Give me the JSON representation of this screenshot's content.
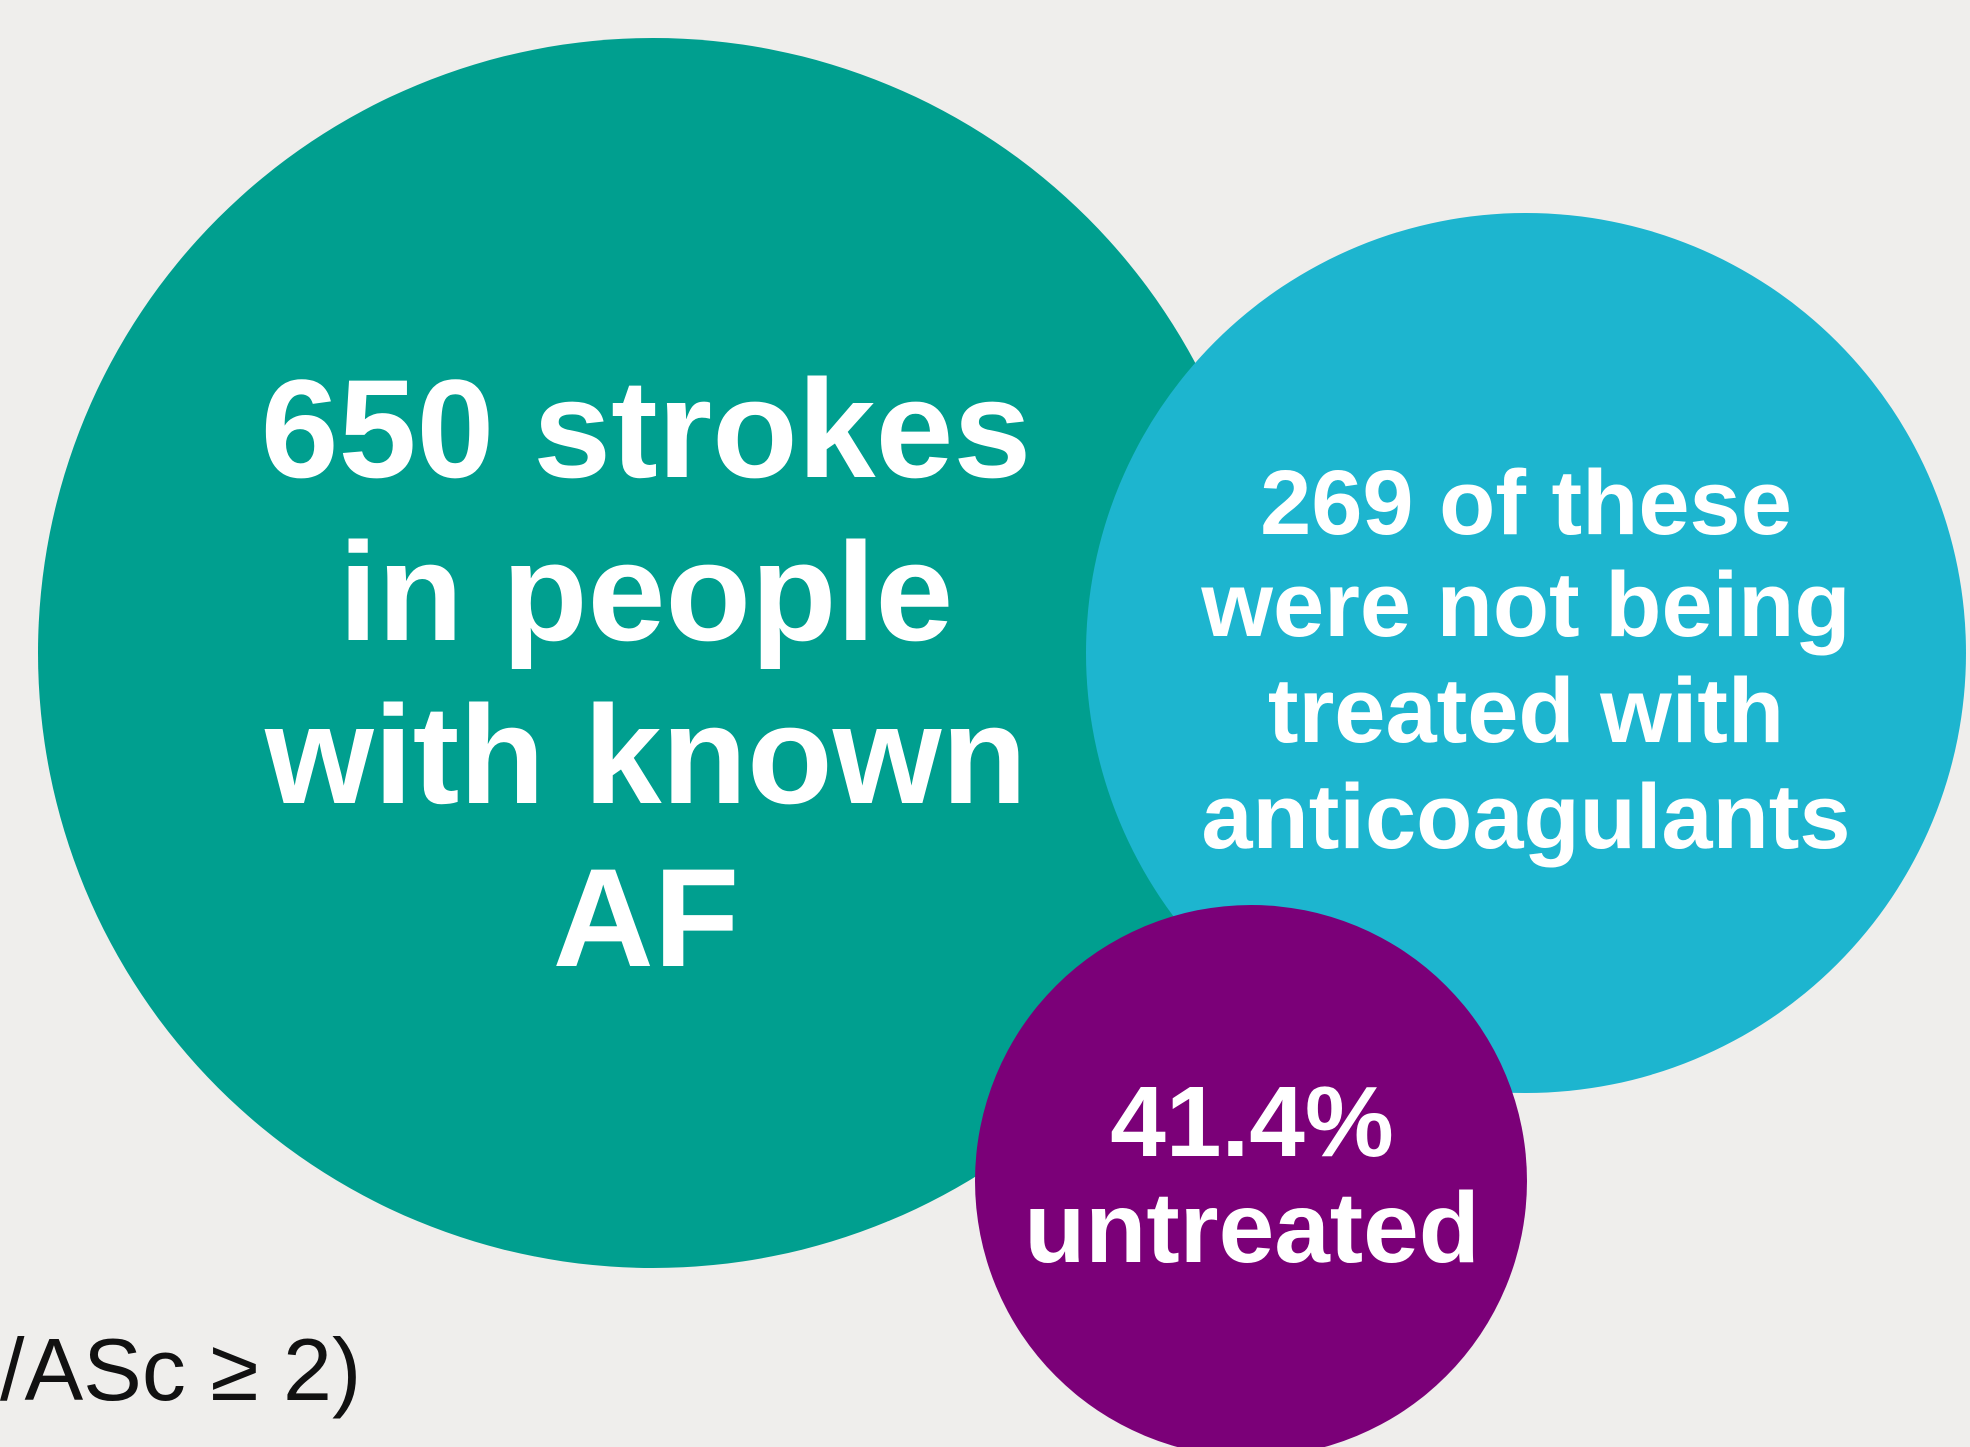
{
  "nodes": [
    {
      "lines": [
        "650 strokes",
        "in people",
        "with known",
        "AF"
      ]
    },
    {
      "lines": [
        "269 of these",
        "were not being",
        "treated with",
        "anticoagulants"
      ]
    },
    {
      "lines": [
        "41.4%",
        "untreated"
      ]
    }
  ],
  "footnote": "/ASc ≥ 2)"
}
